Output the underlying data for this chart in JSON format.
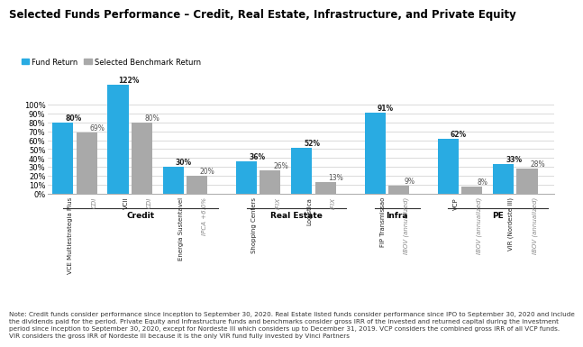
{
  "title": "Selected Funds Performance – Credit, Real Estate, Infrastructure, and Private Equity",
  "title_fontsize": 8.5,
  "legend_labels": [
    "Fund Return",
    "Selected Benchmark Return"
  ],
  "fund_color": "#29ABE2",
  "benchmark_color": "#A9A9A9",
  "bar_width": 0.35,
  "pairs": [
    {
      "fund_label": "VCE Multiestrategia Plus",
      "bench_label": "CDI",
      "fund_val": 80,
      "bench_val": 69,
      "section": "Credit"
    },
    {
      "fund_label": "VCII",
      "bench_label": "CDI",
      "fund_val": 122,
      "bench_val": 80,
      "section": "Credit"
    },
    {
      "fund_label": "Energia Sustentavel",
      "bench_label": "IPCA +6.0%",
      "fund_val": 30,
      "bench_val": 20,
      "section": "Credit"
    },
    {
      "fund_label": "Shopping Centers",
      "bench_label": "IFIX",
      "fund_val": 36,
      "bench_val": 26,
      "section": "Real Estate"
    },
    {
      "fund_label": "Logistica",
      "bench_label": "IFIX",
      "fund_val": 52,
      "bench_val": 13,
      "section": "Real Estate"
    },
    {
      "fund_label": "FIP Transmissao",
      "bench_label": "IBOV (annualized)",
      "fund_val": 91,
      "bench_val": 9,
      "section": "Infra"
    },
    {
      "fund_label": "VCP",
      "bench_label": "IBOV (annualized)",
      "fund_val": 62,
      "bench_val": 8,
      "section": "PE"
    },
    {
      "fund_label": "VIR (Nordeste III)",
      "bench_label": "IBOV (annualized)",
      "fund_val": 33,
      "bench_val": 28,
      "section": "PE"
    }
  ],
  "sections": [
    "Credit",
    "Real Estate",
    "Infra",
    "PE"
  ],
  "ylim": [
    0,
    130
  ],
  "yticks": [
    0,
    10,
    20,
    30,
    40,
    50,
    60,
    70,
    80,
    90,
    100
  ],
  "note_lines": [
    "Note: Credit funds consider performance since inception to September 30, 2020. Real Estate listed funds consider performance since IPO to September 30, 2020 and include",
    "the dividends paid for the period. Private Equity and Infrastructure funds and benchmarks consider gross IRR of the invested and returned capital during the investment",
    "period since inception to September 30, 2020, except for Nordeste III which considers up to December 31, 2019. VCP considers the combined gross IRR of all VCP funds.",
    "VIR considers the gross IRR of Nordeste III because it is the only VIR fund fully invested by Vinci Partners"
  ],
  "note_fontsize": 5.2,
  "background_color": "#FFFFFF"
}
